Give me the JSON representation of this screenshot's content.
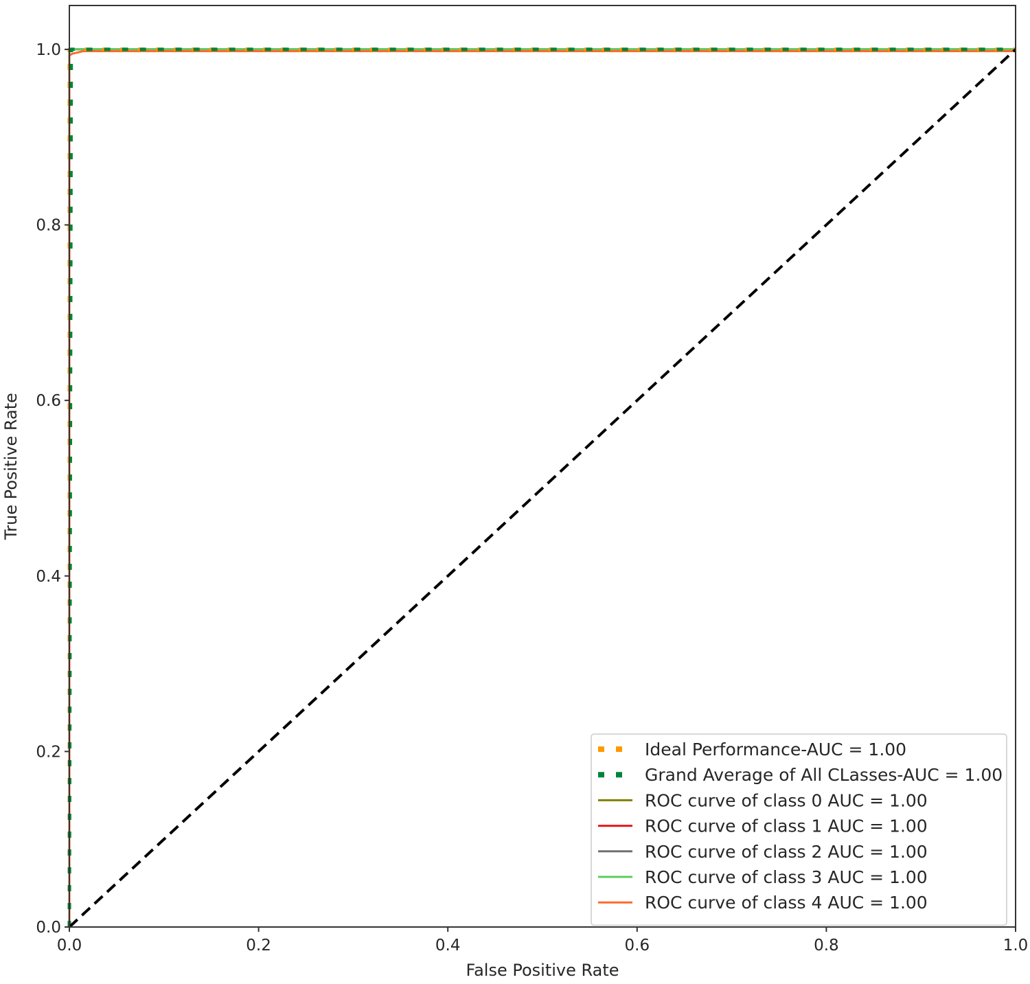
{
  "chart_data": {
    "type": "line",
    "title": "",
    "xlabel": "False Positive Rate",
    "ylabel": "True Positive Rate",
    "xlim": [
      0.0,
      1.0
    ],
    "ylim": [
      0.0,
      1.05
    ],
    "x_ticks": [
      "0.0",
      "0.2",
      "0.4",
      "0.6",
      "0.8",
      "1.0"
    ],
    "y_ticks": [
      "0.0",
      "0.2",
      "0.4",
      "0.6",
      "0.8",
      "1.0"
    ],
    "grid": false,
    "legend_position": "lower-right",
    "series": [
      {
        "name": "Ideal Performance-AUC = 1.00",
        "color": "#ff9900",
        "style": "dotted",
        "x": [
          0.0,
          0.0,
          1.0
        ],
        "y": [
          0.0,
          1.0,
          1.0
        ]
      },
      {
        "name": "Grand Average of All CLasses-AUC = 1.00",
        "color": "#00843d",
        "style": "dotted",
        "x": [
          0.0,
          0.002,
          1.0
        ],
        "y": [
          0.0,
          1.0,
          1.0
        ]
      },
      {
        "name": "ROC curve of class 0 AUC = 1.00",
        "color": "#808000",
        "style": "solid",
        "x": [
          0.0,
          0.0,
          1.0
        ],
        "y": [
          0.0,
          1.0,
          1.0
        ]
      },
      {
        "name": "ROC curve of class 1 AUC = 1.00",
        "color": "#e8161a",
        "style": "solid",
        "x": [
          0.0,
          0.0,
          1.0
        ],
        "y": [
          0.0,
          1.0,
          1.0
        ]
      },
      {
        "name": "ROC curve of class 2 AUC = 1.00",
        "color": "#707070",
        "style": "solid",
        "x": [
          0.0,
          0.0,
          1.0
        ],
        "y": [
          0.0,
          1.0,
          1.0
        ]
      },
      {
        "name": "ROC curve of class 3 AUC = 1.00",
        "color": "#5ccc5c",
        "style": "solid",
        "x": [
          0.0,
          0.0,
          1.0
        ],
        "y": [
          0.0,
          1.0,
          1.0
        ]
      },
      {
        "name": "ROC curve of class 4 AUC = 1.00",
        "color": "#ff6a2b",
        "style": "solid",
        "x": [
          0.0,
          0.0,
          0.003,
          0.015,
          1.0
        ],
        "y": [
          0.0,
          0.993,
          0.995,
          0.998,
          0.998
        ]
      }
    ],
    "reference_line": {
      "color": "#000000",
      "style": "dashed",
      "x": [
        0.0,
        1.0
      ],
      "y": [
        0.0,
        1.0
      ]
    }
  }
}
